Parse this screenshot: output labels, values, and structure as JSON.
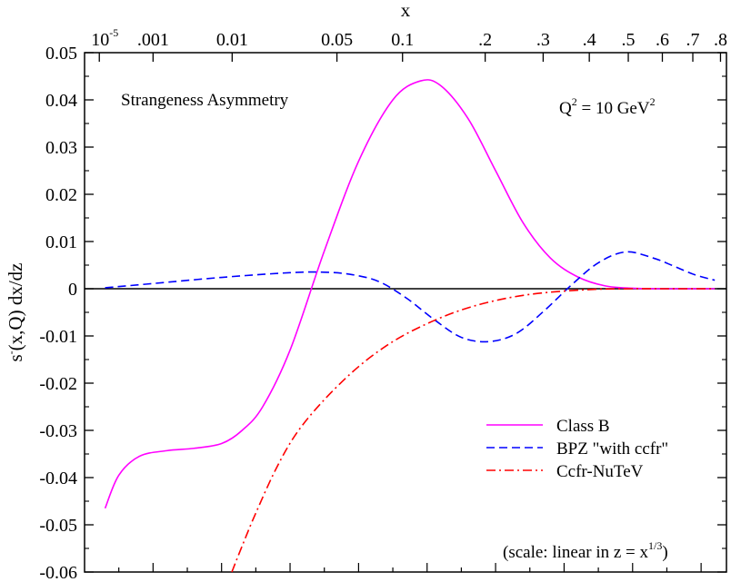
{
  "chart_data": {
    "type": "line",
    "title": "Strangeness Asymmetry",
    "annotation": {
      "q_main": "Q",
      "q_sup": "2",
      "q_eq": " = 10 GeV",
      "q_unit_sup": "2"
    },
    "scale_note": {
      "prefix": "(scale: linear in z = x",
      "sup": "1/3",
      "suffix": ")"
    },
    "xlabel": "x",
    "ylabel": "s (x,Q) dx/dz",
    "ylabel_sup": "-",
    "x_scale": "cube-root",
    "xlim": [
      0,
      0.937
    ],
    "ylim": [
      -0.06,
      0.05
    ],
    "top_ticks": [
      {
        "label": "10",
        "sup": "-5",
        "x": 1e-05
      },
      {
        "label": ".001",
        "x": 0.001
      },
      {
        "label": "0.01",
        "x": 0.01
      },
      {
        "label": "0.05",
        "x": 0.05
      },
      {
        "label": "0.1",
        "x": 0.1
      },
      {
        "label": ".2",
        "x": 0.2
      },
      {
        "label": ".3",
        "x": 0.3
      },
      {
        "label": ".4",
        "x": 0.4
      },
      {
        "label": ".5",
        "x": 0.5
      },
      {
        "label": ".6",
        "x": 0.6
      },
      {
        "label": ".7",
        "x": 0.7
      },
      {
        "label": ".8",
        "x": 0.8
      }
    ],
    "y_ticks": [
      {
        "label": "0.05",
        "v": 0.05
      },
      {
        "label": "0.04",
        "v": 0.04
      },
      {
        "label": "0.03",
        "v": 0.03
      },
      {
        "label": "0.02",
        "v": 0.02
      },
      {
        "label": "0.01",
        "v": 0.01
      },
      {
        "label": "0",
        "v": 0
      },
      {
        "label": "-0.01",
        "v": -0.01
      },
      {
        "label": "-0.02",
        "v": -0.02
      },
      {
        "label": "-0.03",
        "v": -0.03
      },
      {
        "label": "-0.04",
        "v": -0.04
      },
      {
        "label": "-0.05",
        "v": -0.05
      },
      {
        "label": "-0.06",
        "v": -0.06
      }
    ],
    "series": [
      {
        "name": "Class B",
        "color": "#ff00ff",
        "style": "solid",
        "z": [
          0.03,
          0.05,
          0.08,
          0.12,
          0.16,
          0.2,
          0.23,
          0.26,
          0.3,
          0.35,
          0.4,
          0.45,
          0.49,
          0.52,
          0.56,
          0.6,
          0.64,
          0.68,
          0.72,
          0.76,
          0.8,
          0.84,
          0.88,
          0.92
        ],
        "y": [
          -0.0465,
          -0.0395,
          -0.0355,
          -0.0343,
          -0.0338,
          -0.0328,
          -0.03,
          -0.025,
          -0.013,
          0.008,
          0.027,
          0.04,
          0.044,
          0.043,
          0.036,
          0.025,
          0.014,
          0.0065,
          0.0025,
          0.0006,
          0.0001,
          0.0,
          0.0,
          0.0
        ]
      },
      {
        "name": "BPZ \"with ccfr\"",
        "color": "#0000ff",
        "style": "dashed",
        "z": [
          0.03,
          0.1,
          0.2,
          0.3,
          0.35,
          0.39,
          0.43,
          0.47,
          0.51,
          0.55,
          0.59,
          0.63,
          0.67,
          0.71,
          0.75,
          0.79,
          0.83,
          0.86,
          0.89,
          0.92
        ],
        "y": [
          0.0002,
          0.0011,
          0.0024,
          0.0034,
          0.0035,
          0.003,
          0.0015,
          -0.002,
          -0.0065,
          -0.0103,
          -0.0112,
          -0.0095,
          -0.0048,
          0.0007,
          0.0055,
          0.0078,
          0.0065,
          0.0048,
          0.003,
          0.0018
        ]
      },
      {
        "name": "Ccfr-NuTeV",
        "color": "#ff0000",
        "style": "dashdot",
        "z": [
          0.215,
          0.23,
          0.25,
          0.28,
          0.31,
          0.35,
          0.4,
          0.45,
          0.5,
          0.55,
          0.6,
          0.65,
          0.7,
          0.75,
          0.8,
          0.85,
          0.9,
          0.92
        ],
        "y": [
          -0.06,
          -0.0545,
          -0.0475,
          -0.038,
          -0.0305,
          -0.0235,
          -0.0165,
          -0.0112,
          -0.0074,
          -0.0045,
          -0.0025,
          -0.0012,
          -0.0005,
          -0.0001,
          0.0,
          0.0,
          0.0,
          0.0
        ]
      }
    ]
  }
}
